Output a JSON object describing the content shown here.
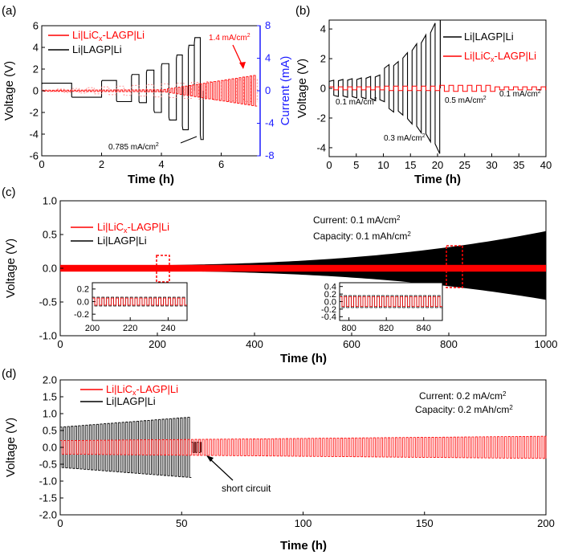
{
  "colors": {
    "red": "#ff0000",
    "black": "#000000",
    "blue": "#1a1aff",
    "lightred": "#ff6666"
  },
  "panels": {
    "a": {
      "label": "(a)",
      "xlabel": "Time (h)",
      "ylabel": "Voltage (V)",
      "ylabel_right": "Current (mA)",
      "xlim": [
        0,
        7.3
      ],
      "ylim": [
        -6,
        6
      ],
      "y2lim": [
        -8,
        8
      ],
      "xticks": [
        0,
        2,
        4,
        6
      ],
      "yticks": [
        -6,
        -4,
        -2,
        0,
        2,
        4,
        6
      ],
      "y2ticks": [
        -8,
        -4,
        0,
        4,
        8
      ],
      "legend": [
        "Li|LiC",
        "x",
        "-LAGP|Li",
        "Li|LAGP|Li"
      ],
      "annotations": [
        "1.4 mA/cm",
        "2",
        "0.785 mA/cm",
        "2"
      ]
    },
    "b": {
      "label": "(b)",
      "xlabel": "Time (h)",
      "ylabel": "Voltage (V)",
      "xlim": [
        0,
        40
      ],
      "ylim": [
        -4.6,
        4.6
      ],
      "xticks": [
        0,
        5,
        10,
        15,
        20,
        25,
        30,
        35,
        40
      ],
      "yticks": [
        -4,
        -2,
        0,
        2,
        4
      ],
      "legend": [
        "Li|LAGP|Li",
        "Li|LiC",
        "x",
        "-LAGP|Li"
      ],
      "annotations": [
        "0.1 mA/cm",
        "2",
        "0.3 mA/cm",
        "2",
        "0.5 mA/cm",
        "2",
        "0.1 mA/cm",
        "2"
      ]
    },
    "c": {
      "label": "(c)",
      "xlabel": "Time (h)",
      "ylabel": "Voltage (V)",
      "xlim": [
        0,
        1000
      ],
      "ylim": [
        -1.0,
        1.0
      ],
      "xticks": [
        0,
        200,
        400,
        600,
        800,
        1000
      ],
      "yticks": [
        -1.0,
        -0.5,
        0.0,
        0.5,
        1.0
      ],
      "legend": [
        "Li|LiC",
        "x",
        "-LAGP|Li",
        "Li|LAGP|Li"
      ],
      "text": [
        "Current: 0.1 mA/cm",
        "2",
        "Capacity: 0.1 mAh/cm",
        "2"
      ],
      "inset1": {
        "xticks": [
          200,
          220,
          240
        ],
        "yticks": [
          0.2,
          0.0,
          -0.2
        ]
      },
      "inset2": {
        "xticks": [
          800,
          820,
          840
        ],
        "yticks": [
          0.4,
          0.2,
          0.0,
          -0.2,
          -0.4
        ]
      }
    },
    "d": {
      "label": "(d)",
      "xlabel": "Time (h)",
      "ylabel": "Voltage (V)",
      "xlim": [
        0,
        200
      ],
      "ylim": [
        -2.0,
        2.0
      ],
      "xticks": [
        0,
        50,
        100,
        150,
        200
      ],
      "yticks": [
        2.0,
        1.5,
        1.0,
        0.5,
        0.0,
        -0.5,
        -1.0,
        -1.5,
        -2.0
      ],
      "legend": [
        "Li|LiC",
        "x",
        "-LAGP|Li",
        "Li|LAGP|Li"
      ],
      "text": [
        "Current: 0.2 mA/cm",
        "2",
        "Capacity: 0.2 mAh/cm",
        "2"
      ],
      "annotation": "short circuit"
    }
  },
  "chart_data": [
    {
      "type": "line",
      "panel": "a",
      "title": "",
      "series": [
        {
          "name": "Li|LAGP|Li",
          "x_range_h": [
            0,
            5.4
          ],
          "voltage_amplitudes_V": [
            0.7,
            0.6,
            0.95,
            1.0,
            1.5,
            1.1,
            1.9,
            2.0,
            2.5,
            2.7,
            3.3,
            3.6,
            4.2,
            4.9,
            4.5
          ]
        },
        {
          "name": "Li|LiCx-LAGP|Li",
          "x_range_h": [
            0,
            7.2
          ],
          "voltage_amplitudes_V": [
            0.05,
            1.5
          ]
        },
        {
          "name": "Current",
          "axis": "right",
          "current_max_mA": 1.4
        }
      ]
    },
    {
      "type": "line",
      "panel": "b",
      "series": [
        {
          "name": "Li|LAGP|Li",
          "x_range_h": [
            0,
            20.5
          ],
          "voltage_amplitudes_V": [
            0.55,
            0.6,
            0.65,
            0.7,
            0.8,
            0.9,
            1.6,
            1.8,
            2.4,
            3.0,
            3.6,
            4.4
          ]
        },
        {
          "name": "Li|LiCx-LAGP|Li",
          "x_range_h": [
            0,
            40
          ],
          "voltage_amplitudes_V": [
            0.1,
            0.1,
            0.15,
            0.2,
            0.1
          ]
        }
      ]
    },
    {
      "type": "line",
      "panel": "c",
      "series": [
        {
          "name": "Li|LAGP|Li",
          "x_range_h": [
            0,
            1000
          ],
          "envelope_start_V": 0.04,
          "envelope_end_V": 0.55
        },
        {
          "name": "Li|LiCx-LAGP|Li",
          "x_range_h": [
            0,
            1000
          ],
          "envelope_V": 0.05
        }
      ]
    },
    {
      "type": "line",
      "panel": "d",
      "series": [
        {
          "name": "Li|LAGP|Li",
          "x_range_h": [
            0,
            58
          ],
          "voltage_amplitude_start_V": 0.6,
          "voltage_amplitude_end_V": 0.9,
          "short_circuit_h": 57
        },
        {
          "name": "Li|LiCx-LAGP|Li",
          "x_range_h": [
            0,
            200
          ],
          "voltage_amplitude_start_V": 0.2,
          "voltage_amplitude_end_V": 0.33
        }
      ]
    }
  ]
}
